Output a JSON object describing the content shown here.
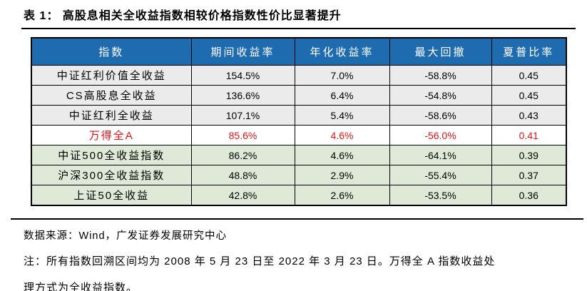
{
  "title": "表 1： 高股息相关全收益指数相较价格指数性价比显著提升",
  "table": {
    "headers": [
      "指数",
      "期间收益率",
      "年化收益率",
      "最大回撤",
      "夏普比率"
    ],
    "rows": [
      [
        "中证红利价值全收益",
        "154.5%",
        "7.0%",
        "-58.8%",
        "0.45"
      ],
      [
        "CS高股息全收益",
        "136.6%",
        "6.4%",
        "-54.8%",
        "0.45"
      ],
      [
        "中证红利全收益",
        "107.1%",
        "5.4%",
        "-58.6%",
        "0.43"
      ],
      [
        "万得全A",
        "85.6%",
        "4.6%",
        "-56.0%",
        "0.41"
      ],
      [
        "中证500全收益指数",
        "86.2%",
        "4.6%",
        "-64.1%",
        "0.39"
      ],
      [
        "沪深300全收益指数",
        "48.8%",
        "2.9%",
        "-55.4%",
        "0.37"
      ],
      [
        "上证50全收益",
        "42.8%",
        "2.6%",
        "-53.5%",
        "0.36"
      ]
    ],
    "row_styles": [
      "gray",
      "gray",
      "gray",
      "highlight",
      "green",
      "green",
      "green"
    ]
  },
  "colors": {
    "header_bg": "#1e6bb0",
    "header_text": "#ffffff",
    "gray_row_bg": "#ebebeb",
    "green_row_bg": "#dfe9d8",
    "highlight_text": "#ee1111",
    "border": "#000000"
  },
  "footer": {
    "source": "数据来源：Wind，广发证券发展研究中心",
    "note_line1": "注：所有指数回溯区间均为 2008 年 5 月 23 日至 2022 年 3 月 23 日。万得全 A 指数收益处",
    "note_line2": "理方式为全收益指数。"
  }
}
